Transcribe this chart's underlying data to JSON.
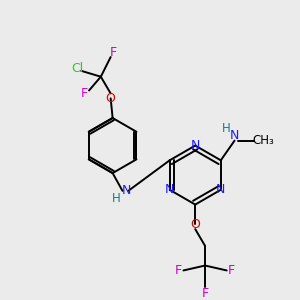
{
  "bg_color": "#ebebeb",
  "C": "#000000",
  "N": "#1a1aff",
  "O": "#dd0000",
  "F": "#cc00cc",
  "Cl": "#22cc22",
  "H": "#008888",
  "bond": "#000000",
  "figsize": [
    3.0,
    3.0
  ],
  "dpi": 100
}
